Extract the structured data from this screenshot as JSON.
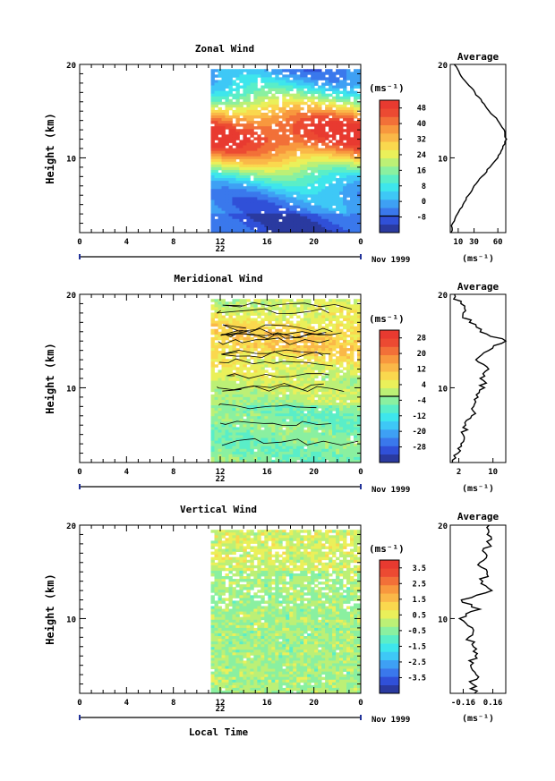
{
  "figure": {
    "xlabel": "Local Time",
    "date_label": "Nov 1999",
    "ylabel": "Height (km)",
    "avg_title": "Average",
    "unit_label": "(ms⁻¹)"
  },
  "chart_data": [
    {
      "type": "heatmap",
      "title": "Zonal Wind",
      "ylabel": "Height (km)",
      "x_ticks": [
        "0",
        "4",
        "8",
        "12",
        "16",
        "20",
        "0"
      ],
      "day_label": "22",
      "xlim": [
        0,
        24
      ],
      "ylim": [
        2,
        20
      ],
      "y_ticks": [
        10,
        20
      ],
      "data_start_hour": 11.2,
      "colorbar": {
        "label": "(ms⁻¹)",
        "ticks": [
          "-8",
          "0",
          "8",
          "16",
          "24",
          "32",
          "40",
          "48"
        ],
        "colors": [
          "#2a3aa0",
          "#3050d8",
          "#3a78ec",
          "#3ea0f4",
          "#3ec8f6",
          "#3ee6ec",
          "#5aeec8",
          "#8af0a0",
          "#bcf076",
          "#eaf05a",
          "#fad84e",
          "#fab848",
          "#f8983e",
          "#f27038",
          "#ec4a32",
          "#e83a30"
        ],
        "zero_boundary_index": 2
      },
      "profile": {
        "title": "Average",
        "x_ticks": [
          "10",
          "30",
          "60"
        ],
        "xlabel": "(ms⁻¹)",
        "xlim": [
          0,
          70
        ],
        "height_km": [
          2,
          3,
          4,
          5,
          6,
          7,
          8,
          9,
          10,
          11,
          12,
          13,
          14,
          15,
          16,
          17,
          18,
          19,
          20
        ],
        "values": [
          1,
          3,
          9,
          16,
          23,
          30,
          40,
          50,
          60,
          66,
          71,
          68,
          60,
          49,
          40,
          31,
          21,
          12,
          5
        ]
      }
    },
    {
      "type": "heatmap",
      "title": "Meridional Wind",
      "ylabel": "Height (km)",
      "x_ticks": [
        "0",
        "4",
        "8",
        "12",
        "16",
        "20",
        "0"
      ],
      "day_label": "22",
      "xlim": [
        0,
        24
      ],
      "ylim": [
        2,
        20
      ],
      "y_ticks": [
        10,
        20
      ],
      "data_start_hour": 11.2,
      "colorbar": {
        "label": "(ms⁻¹)",
        "ticks": [
          "-28",
          "-20",
          "-12",
          "-4",
          "4",
          "12",
          "20",
          "28"
        ],
        "colors": [
          "#2a3aa0",
          "#3050d8",
          "#3a78ec",
          "#3ea0f4",
          "#3ec8f6",
          "#3ee6ec",
          "#5aeec8",
          "#8af0a0",
          "#bcf076",
          "#eaf05a",
          "#fad84e",
          "#fab848",
          "#f8983e",
          "#f27038",
          "#ec4a32",
          "#e83a30"
        ],
        "zero_boundary_index": 8
      },
      "profile": {
        "title": "Average",
        "x_ticks": [
          "2",
          "10"
        ],
        "xlabel": "(ms⁻¹)",
        "xlim": [
          0,
          13
        ],
        "height_km": [
          2,
          3,
          4,
          5,
          6,
          7,
          8,
          9,
          10,
          11,
          12,
          13,
          14,
          15,
          16,
          17,
          18,
          19,
          20
        ],
        "values": [
          0.5,
          1.8,
          2.5,
          3,
          3.6,
          5,
          5.5,
          6.5,
          8,
          7,
          9,
          6,
          9,
          13,
          7,
          4.5,
          3,
          2.5,
          1
        ]
      }
    },
    {
      "type": "heatmap",
      "title": "Vertical Wind",
      "ylabel": "Height (km)",
      "x_ticks": [
        "0",
        "4",
        "8",
        "12",
        "16",
        "20",
        "0"
      ],
      "day_label": "22",
      "xlim": [
        0,
        24
      ],
      "ylim": [
        2,
        20
      ],
      "y_ticks": [
        10,
        20
      ],
      "data_start_hour": 11.2,
      "colorbar": {
        "label": "(ms⁻¹)",
        "ticks": [
          "-3.5",
          "-2.5",
          "-1.5",
          "-0.5",
          "0.5",
          "1.5",
          "2.5",
          "3.5"
        ],
        "colors": [
          "#2a3aa0",
          "#3050d8",
          "#3a78ec",
          "#3ea0f4",
          "#3ec8f6",
          "#3ee6ec",
          "#5aeec8",
          "#8af0a0",
          "#bcf076",
          "#eaf05a",
          "#fad84e",
          "#fab848",
          "#f8983e",
          "#f27038",
          "#ec4a32",
          "#e83a30"
        ],
        "zero_boundary_index": -1
      },
      "profile": {
        "title": "Average",
        "x_ticks": [
          "-0.16",
          "0.16"
        ],
        "xlabel": "(ms⁻¹)",
        "xlim": [
          -0.3,
          0.3
        ],
        "height_km": [
          2,
          3,
          4,
          5,
          6,
          7,
          8,
          9,
          10,
          11,
          12,
          13,
          14,
          15,
          16,
          17,
          18,
          19,
          20
        ],
        "values": [
          -0.04,
          -0.06,
          -0.02,
          -0.08,
          -0.03,
          -0.05,
          -0.1,
          -0.06,
          -0.2,
          0.02,
          -0.18,
          0.15,
          0.05,
          0.1,
          0.02,
          0.08,
          0.12,
          0.1,
          0.12
        ]
      }
    }
  ]
}
